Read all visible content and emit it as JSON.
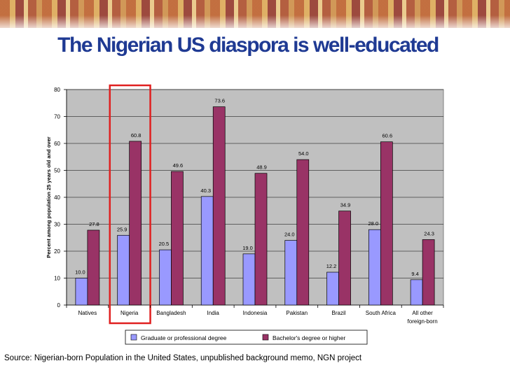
{
  "title": "The Nigerian US diaspora is well-educated",
  "source": "Source: Nigerian-born Population in the United States, unpublished background memo, NGN project",
  "colors": {
    "title": "#1f3a93",
    "plot_bg": "#c0c0c0",
    "series1": "#9999ff",
    "series2": "#993366",
    "highlight": "#e02020"
  },
  "chart_data": {
    "type": "bar",
    "categories": [
      "Natives",
      "Nigeria",
      "Bangladesh",
      "India",
      "Indonesia",
      "Pakistan",
      "Brazil",
      "South Africa",
      [
        "All other",
        "foreign-born"
      ]
    ],
    "series": [
      {
        "name": "Graduate or professional degree",
        "values": [
          10.0,
          25.9,
          20.5,
          40.3,
          19.0,
          24.0,
          12.2,
          28.0,
          9.4
        ]
      },
      {
        "name": "Bachelor's degree or higher",
        "values": [
          27.8,
          60.8,
          49.6,
          73.6,
          48.9,
          54.0,
          34.9,
          60.6,
          24.3
        ]
      }
    ],
    "ylabel": "Percent among population 25 years old and over",
    "ylim": [
      0,
      80
    ],
    "yticks": [
      0,
      10,
      20,
      30,
      40,
      50,
      60,
      70,
      80
    ],
    "grid": true,
    "legend": "bottom",
    "highlighted_category": "Nigeria"
  }
}
